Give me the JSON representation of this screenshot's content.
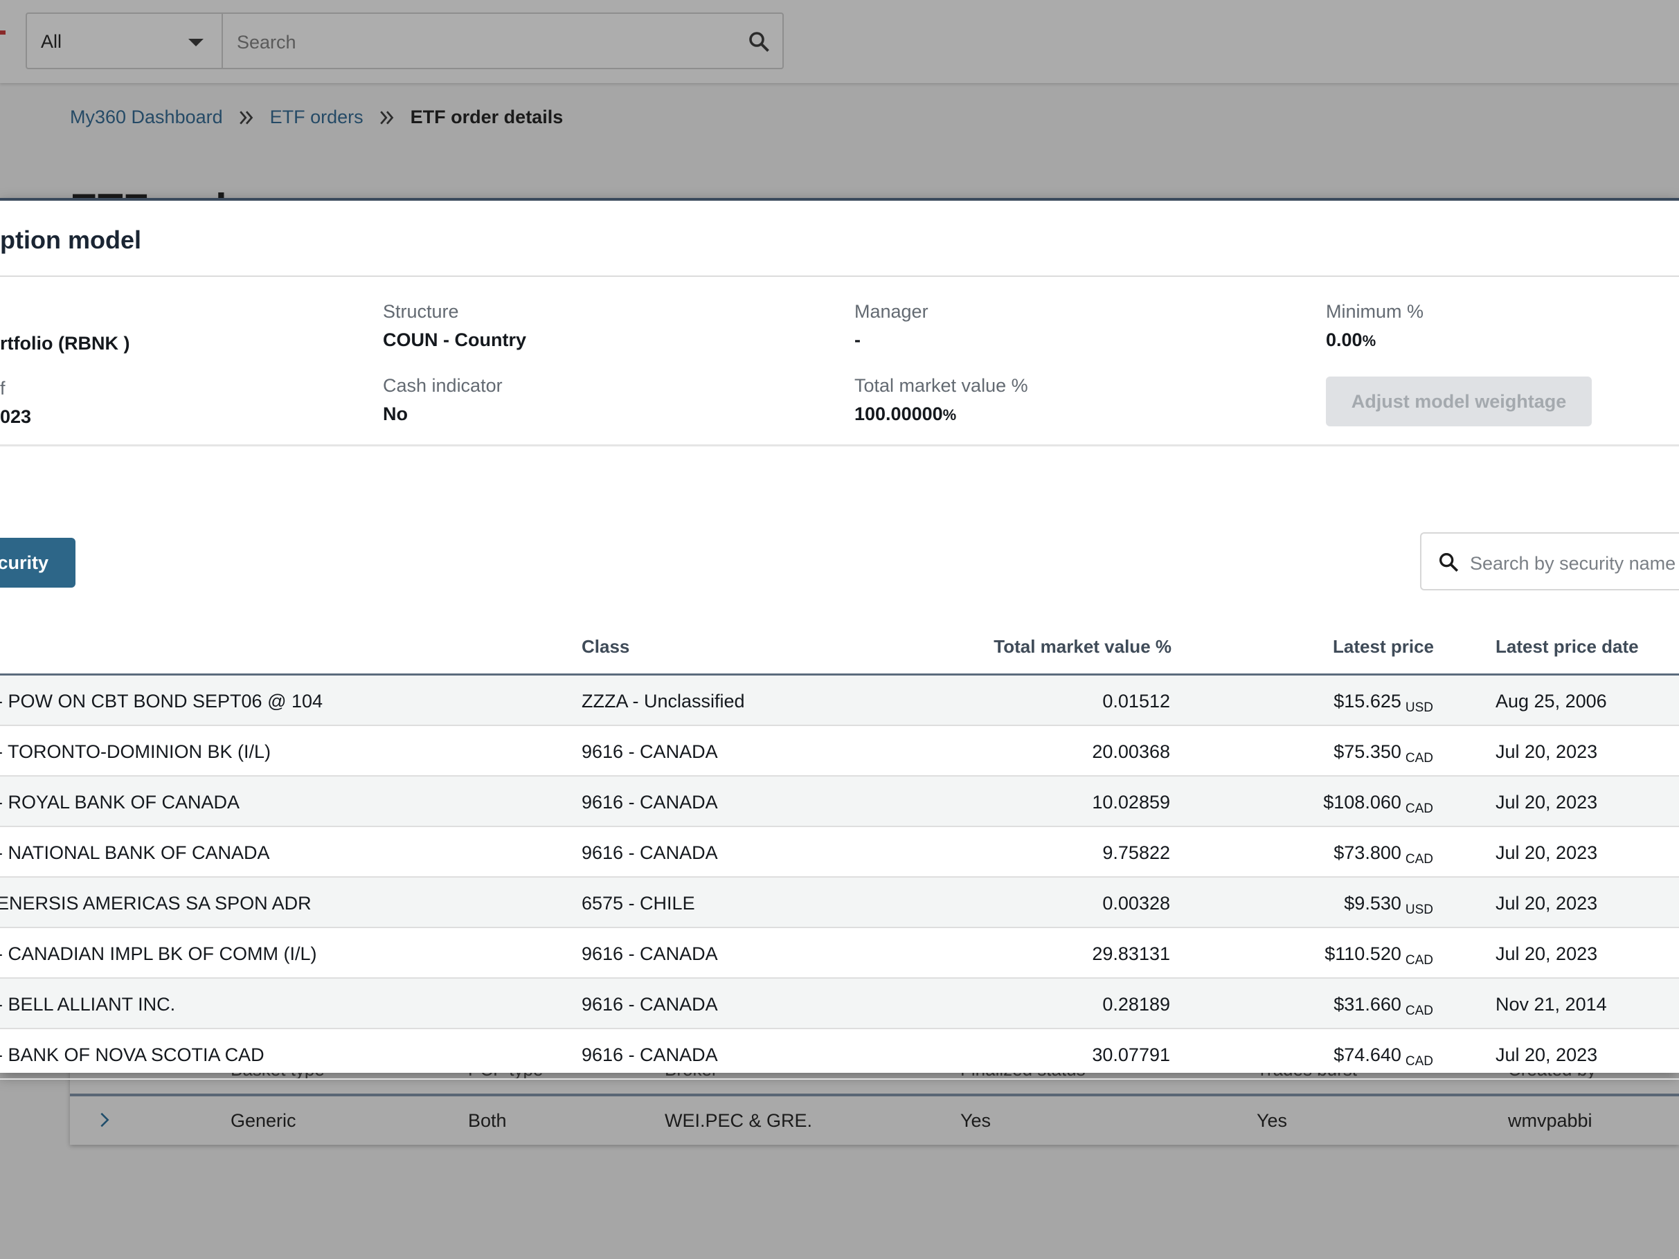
{
  "topbar": {
    "scope_select": "All",
    "search_placeholder": "Search"
  },
  "breadcrumb": {
    "items": [
      "My360 Dashboard",
      "ETF orders"
    ],
    "current": "ETF order details"
  },
  "page": {
    "title": "ETF orders"
  },
  "background_table": {
    "headers": [
      "Basket type",
      "PCF type",
      "Broker",
      "Finalized status",
      "Trades burst",
      "Created by"
    ],
    "row": [
      "Generic",
      "Both",
      "WEI.PEC & GRE.",
      "Yes",
      "Yes",
      "wmvpabbi"
    ]
  },
  "modal": {
    "title": "ption model",
    "fields": {
      "portfolio_value": "rtfolio (RBNK )",
      "asof_label": "f",
      "asof_value": "023",
      "structure_label": "Structure",
      "structure_value": "COUN - Country",
      "cash_label": "Cash indicator",
      "cash_value": "No",
      "manager_label": "Manager",
      "manager_value": "-",
      "tmv_label": "Total market value %",
      "tmv_value": "100.00000",
      "tmv_unit": "%",
      "min_label": "Minimum %",
      "min_value": "0.00",
      "min_unit": "%"
    },
    "adjust_button": "Adjust model weightage",
    "add_security_button": "curity",
    "security_search_placeholder": "Search by security name",
    "table": {
      "headers": {
        "class": "Class",
        "tmv": "Total market value %",
        "price": "Latest price",
        "date": "Latest price date"
      },
      "rows": [
        {
          "name": "- POW ON CBT BOND SEPT06 @ 104",
          "class": "ZZZA - Unclassified",
          "tmv": "0.01512",
          "price": "$15.625",
          "currency": "USD",
          "date": "Aug 25, 2006"
        },
        {
          "name": "- TORONTO-DOMINION BK (I/L)",
          "class": "9616 - CANADA",
          "tmv": "20.00368",
          "price": "$75.350",
          "currency": "CAD",
          "date": "Jul 20, 2023"
        },
        {
          "name": "- ROYAL BANK OF CANADA",
          "class": "9616 - CANADA",
          "tmv": "10.02859",
          "price": "$108.060",
          "currency": "CAD",
          "date": "Jul 20, 2023"
        },
        {
          "name": "- NATIONAL BANK OF CANADA",
          "class": "9616 - CANADA",
          "tmv": "9.75822",
          "price": "$73.800",
          "currency": "CAD",
          "date": "Jul 20, 2023"
        },
        {
          "name": "ENERSIS AMERICAS SA SPON ADR",
          "class": "6575 - CHILE",
          "tmv": "0.00328",
          "price": "$9.530",
          "currency": "USD",
          "date": "Jul 20, 2023"
        },
        {
          "name": "- CANADIAN IMPL BK OF COMM (I/L)",
          "class": "9616 - CANADA",
          "tmv": "29.83131",
          "price": "$110.520",
          "currency": "CAD",
          "date": "Jul 20, 2023"
        },
        {
          "name": "- BELL ALLIANT INC.",
          "class": "9616 - CANADA",
          "tmv": "0.28189",
          "price": "$31.660",
          "currency": "CAD",
          "date": "Nov 21, 2014"
        },
        {
          "name": "- BANK OF NOVA SCOTIA CAD",
          "class": "9616 - CANADA",
          "tmv": "30.07791",
          "price": "$74.640",
          "currency": "CAD",
          "date": "Jul 20, 2023"
        }
      ]
    }
  }
}
